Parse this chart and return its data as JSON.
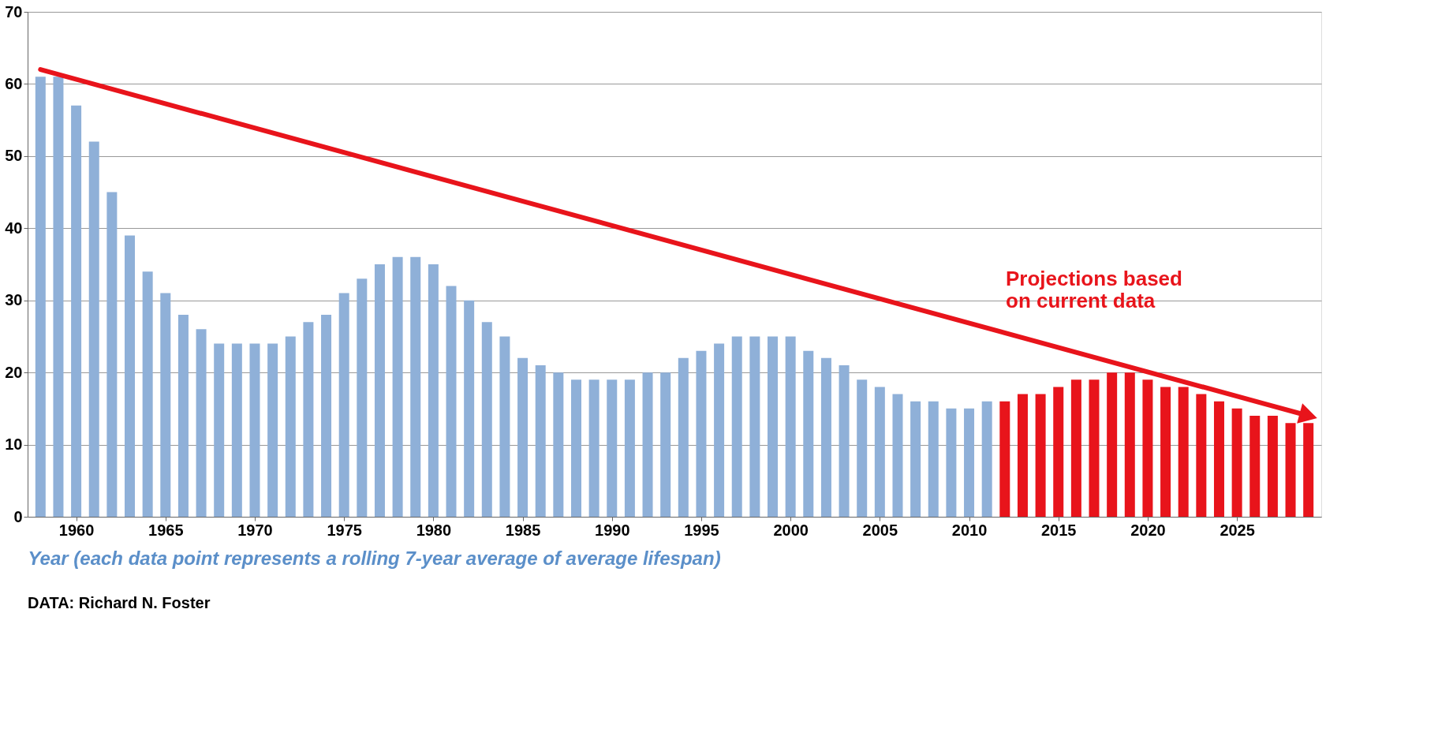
{
  "chart_data": {
    "type": "bar",
    "xlabel": "Year (each data point represents a rolling 7-year average of average lifespan)",
    "xlim": [
      1957.5,
      2029.5
    ],
    "xticks": [
      1960,
      1965,
      1970,
      1975,
      1980,
      1985,
      1990,
      1995,
      2000,
      2005,
      2010,
      2015,
      2020,
      2025
    ],
    "ylim": [
      0,
      70
    ],
    "yticks": [
      0,
      10,
      20,
      30,
      40,
      50,
      60,
      70
    ],
    "grid": "y",
    "legend": false,
    "series": [
      {
        "color": "#8fb0d8",
        "x": [
          1958,
          1959,
          1960,
          1961,
          1962,
          1963,
          1964,
          1965,
          1966,
          1967,
          1968,
          1969,
          1970,
          1971,
          1972,
          1973,
          1974,
          1975,
          1976,
          1977,
          1978,
          1979,
          1980,
          1981,
          1982,
          1983,
          1984,
          1985,
          1986,
          1987,
          1988,
          1989,
          1990,
          1991,
          1992,
          1993,
          1994,
          1995,
          1996,
          1997,
          1998,
          1999,
          2000,
          2001,
          2002,
          2003,
          2004,
          2005,
          2006,
          2007,
          2008,
          2009,
          2010,
          2011
        ],
        "values": [
          61,
          61,
          57,
          52,
          45,
          39,
          34,
          31,
          28,
          26,
          24,
          24,
          24,
          24,
          25,
          27,
          28,
          31,
          33,
          35,
          36,
          36,
          35,
          32,
          30,
          27,
          25,
          22,
          21,
          20,
          19,
          19,
          19,
          19,
          20,
          20,
          22,
          23,
          24,
          25,
          25,
          25,
          25,
          23,
          22,
          21,
          19,
          18,
          17,
          16,
          16,
          15,
          15,
          16
        ]
      },
      {
        "color": "#e8141b",
        "x": [
          2012,
          2013,
          2014,
          2015,
          2016,
          2017,
          2018,
          2019,
          2020,
          2021,
          2022,
          2023,
          2024,
          2025,
          2026,
          2027,
          2028,
          2029
        ],
        "values": [
          16,
          17,
          17,
          18,
          19,
          19,
          20,
          20,
          19,
          18,
          18,
          17,
          16,
          15,
          14,
          14,
          13,
          13
        ]
      },
      {
        "type": "line",
        "color": "#e8141b",
        "x": [
          1958,
          2029
        ],
        "values": [
          62,
          14
        ]
      }
    ],
    "annotations": [
      "Projections based\non current data",
      "DATA: Richard N. Foster"
    ]
  }
}
